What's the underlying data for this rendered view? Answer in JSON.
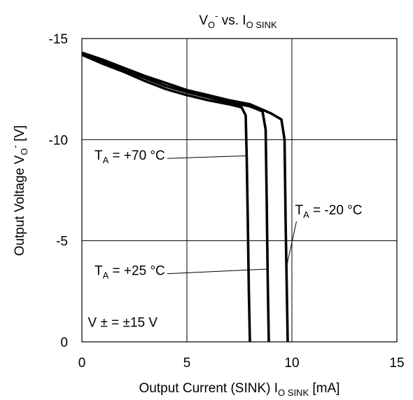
{
  "chart_data": {
    "type": "line",
    "title": {
      "main": "V",
      "main_sub": "O",
      "main_sup": "-",
      "mid": " vs. I",
      "mid_sub": "O SINK"
    },
    "xlabel": {
      "main": "Output Current (SINK) I",
      "sub": "O SINK",
      "unit": " [mA]"
    },
    "ylabel": {
      "main": "Output Voltage V",
      "sub": "O",
      "sup": "-",
      "unit": " [V]"
    },
    "xlim": [
      0,
      15
    ],
    "ylim": [
      0,
      -15
    ],
    "x_ticks": [
      "0",
      "5",
      "10",
      "15"
    ],
    "y_ticks": [
      "0",
      "-5",
      "-10",
      "-15"
    ],
    "grid": true,
    "series": [
      {
        "name": "T_A = +70 °C",
        "x": [
          0,
          1,
          2,
          3,
          4,
          5,
          6,
          7,
          7.6,
          7.8,
          7.85,
          7.9,
          7.95,
          8.0
        ],
        "y": [
          -14.2,
          -13.75,
          -13.35,
          -12.9,
          -12.5,
          -12.2,
          -11.95,
          -11.75,
          -11.6,
          -11.2,
          -9.0,
          -6.0,
          -2.5,
          0
        ]
      },
      {
        "name": "T_A = +25 °C",
        "x": [
          0,
          1,
          2,
          3,
          4,
          5,
          6,
          7,
          8,
          8.6,
          8.75,
          8.8,
          8.85,
          8.9
        ],
        "y": [
          -14.25,
          -13.85,
          -13.45,
          -13.05,
          -12.65,
          -12.35,
          -12.1,
          -11.85,
          -11.65,
          -11.4,
          -10.5,
          -7.0,
          -3.0,
          0
        ]
      },
      {
        "name": "T_A = -20 °C",
        "x": [
          0,
          1,
          2,
          3,
          4,
          5,
          6,
          7,
          8,
          9,
          9.5,
          9.65,
          9.7,
          9.75,
          9.8
        ],
        "y": [
          -14.3,
          -13.95,
          -13.55,
          -13.15,
          -12.8,
          -12.45,
          -12.2,
          -11.95,
          -11.75,
          -11.3,
          -11.0,
          -10.0,
          -6.0,
          -3.0,
          0
        ]
      }
    ],
    "annotations": [
      {
        "id": "t70",
        "label_main": "T",
        "label_sub": "A",
        "label_rest": " = +70 °C",
        "text_x": 0.6,
        "text_y": -9.0,
        "point_x": 7.88,
        "point_y": -9.2
      },
      {
        "id": "t25",
        "label_main": "T",
        "label_sub": "A",
        "label_rest": " = +25 °C",
        "text_x": 0.6,
        "text_y": -3.3,
        "point_x": 8.8,
        "point_y": -3.6
      },
      {
        "id": "tm20",
        "label_main": "T",
        "label_sub": "A",
        "label_rest": " = -20 °C",
        "text_x": 10.15,
        "text_y": -6.3,
        "point_x": 9.72,
        "point_y": -3.6
      }
    ],
    "supply_note": {
      "text": "V ± = ±15 V",
      "x": 0.15,
      "y": -0.4
    },
    "line_color": "#000000",
    "grid_color": "#000000"
  }
}
